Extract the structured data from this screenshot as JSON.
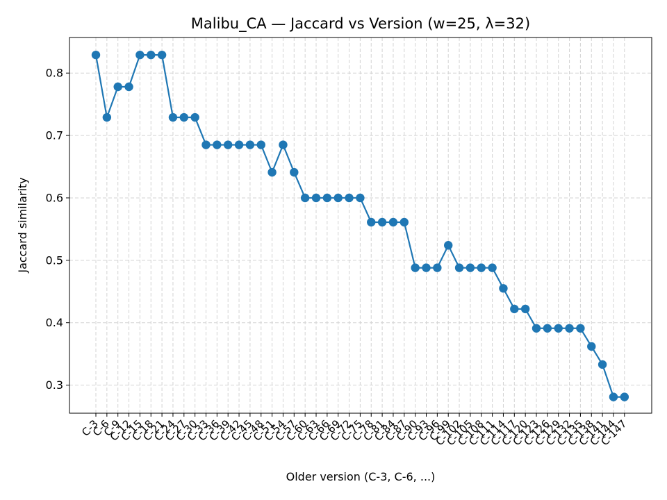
{
  "chart_data": {
    "type": "line",
    "title": "Malibu_CA — Jaccard vs Version (w=25, λ=32)",
    "xlabel": "Older version (C-3, C-6, ...)",
    "ylabel": "Jaccard similarity",
    "ylim": [
      0.255,
      0.857
    ],
    "yticks": [
      0.3,
      0.4,
      0.5,
      0.6,
      0.7,
      0.8
    ],
    "ytick_labels": [
      "0.3",
      "0.4",
      "0.5",
      "0.6",
      "0.7",
      "0.8"
    ],
    "grid": true,
    "color": "#1f77b4",
    "categories": [
      "C-3",
      "C-6",
      "C-9",
      "C-12",
      "C-15",
      "C-18",
      "C-21",
      "C-24",
      "C-27",
      "C-30",
      "C-33",
      "C-36",
      "C-39",
      "C-42",
      "C-45",
      "C-48",
      "C-51",
      "C-54",
      "C-57",
      "C-60",
      "C-63",
      "C-66",
      "C-69",
      "C-72",
      "C-75",
      "C-78",
      "C-81",
      "C-84",
      "C-87",
      "C-90",
      "C-93",
      "C-96",
      "C-99",
      "C-102",
      "C-105",
      "C-108",
      "C-111",
      "C-114",
      "C-117",
      "C-120",
      "C-123",
      "C-126",
      "C-129",
      "C-132",
      "C-135",
      "C-138",
      "C-141",
      "C-144",
      "C-147"
    ],
    "values": [
      0.829,
      0.729,
      0.778,
      0.778,
      0.829,
      0.829,
      0.829,
      0.729,
      0.729,
      0.729,
      0.685,
      0.685,
      0.685,
      0.685,
      0.685,
      0.685,
      0.641,
      0.685,
      0.641,
      0.6,
      0.6,
      0.6,
      0.6,
      0.6,
      0.6,
      0.561,
      0.561,
      0.561,
      0.561,
      0.488,
      0.488,
      0.488,
      0.524,
      0.488,
      0.488,
      0.488,
      0.488,
      0.455,
      0.422,
      0.422,
      0.391,
      0.391,
      0.391,
      0.391,
      0.391,
      0.362,
      0.333,
      0.281,
      0.281
    ]
  }
}
